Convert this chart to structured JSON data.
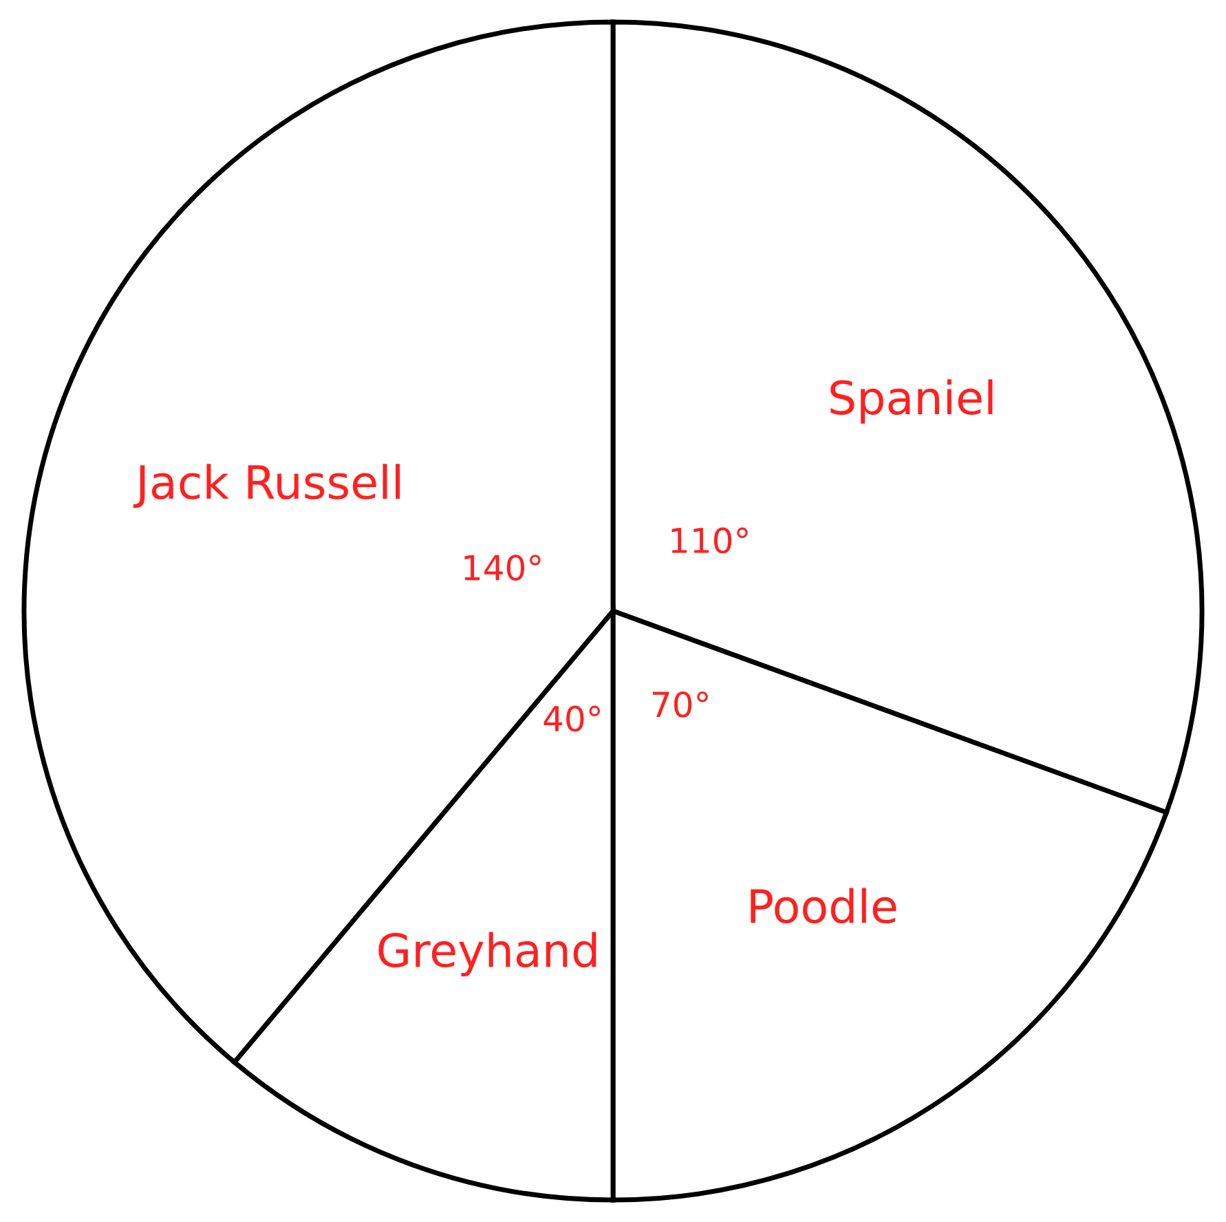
{
  "chart_data": {
    "type": "pie",
    "categories": [
      "Spaniel",
      "Poodle",
      "Greyhand",
      "Jack Russell"
    ],
    "values": [
      110,
      70,
      40,
      140
    ],
    "colors": [
      "#ffffff",
      "#ffffff",
      "#ffffff",
      "#ffffff"
    ],
    "value_labels": [
      "110°",
      "70°",
      "40°",
      "140°"
    ]
  }
}
